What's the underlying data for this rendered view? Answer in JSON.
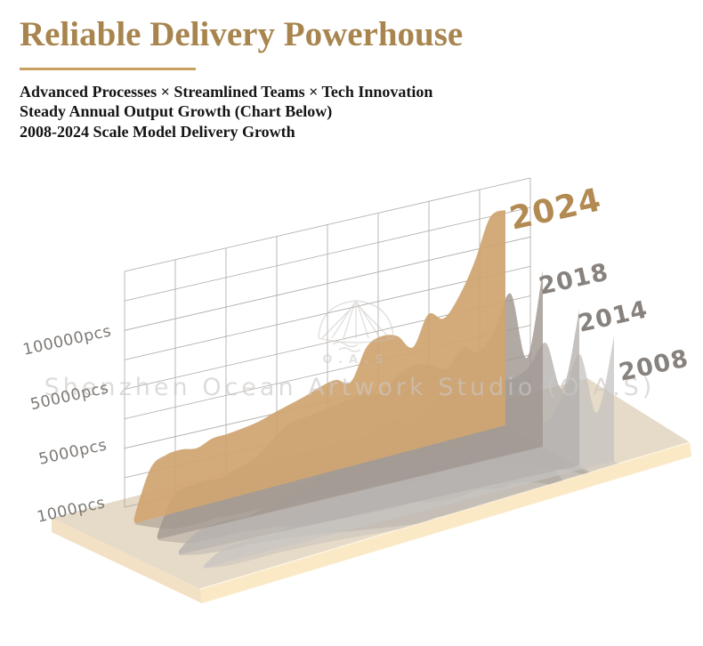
{
  "header": {
    "title": "Reliable Delivery Powerhouse",
    "subtitle_lines": [
      "Advanced Processes × Streamlined Teams × Tech Innovation",
      "Steady Annual Output Growth (Chart Below)",
      "2008-2024 Scale Model Delivery Growth"
    ],
    "accent_color": "#a8854e",
    "underline_color": "#c7a05f"
  },
  "watermark": {
    "studio_text": "Shenzhen Ocean Artwork Studio (O.A.S)",
    "logo_text": "O.A.S"
  },
  "chart_data": {
    "type": "area",
    "title": "2008-2024 Scale Model Delivery Growth",
    "unit": "pcs",
    "xlabel": "",
    "ylabel": "pcs",
    "scale": "non-linear decorative axis",
    "ytick_labels": [
      "100000pcs",
      "50000pcs",
      "5000pcs",
      "1000pcs"
    ],
    "ytick_values": [
      100000,
      50000,
      5000,
      1000
    ],
    "grid": {
      "rows": 8,
      "cols": 8,
      "style": "sheared 3D wall"
    },
    "legend_position": "labels at right end of each ribbon",
    "series": [
      {
        "name": "2008",
        "fill": "#c4c1bf",
        "label_color": "#87827e",
        "values": [
          150,
          700,
          800,
          850,
          800,
          950,
          1050,
          1250,
          1450,
          1750,
          2000,
          2250,
          2500,
          2700,
          2350,
          2500,
          2800,
          2600,
          2300,
          3100,
          2700,
          3600,
          8000,
          2500,
          12000
        ]
      },
      {
        "name": "2014",
        "fill": "#b3b0ad",
        "label_color": "#87827e",
        "values": [
          250,
          1000,
          1200,
          1250,
          1200,
          1450,
          1600,
          1900,
          2250,
          2800,
          3200,
          3600,
          4000,
          4300,
          3800,
          4500,
          5000,
          4700,
          4200,
          5600,
          5000,
          9000,
          18000,
          4000,
          30000
        ]
      },
      {
        "name": "2018",
        "fill": "#a09690",
        "label_color": "#87827e",
        "values": [
          500,
          2500,
          2800,
          2900,
          2800,
          3200,
          3500,
          4200,
          5000,
          6500,
          8000,
          9500,
          11000,
          12000,
          10000,
          18000,
          21000,
          19000,
          15000,
          24000,
          20000,
          30000,
          48000,
          10000,
          60000
        ]
      },
      {
        "name": "2024",
        "fill": "#d0a571",
        "label_color": "#b28a52",
        "values": [
          800,
          4000,
          4700,
          4800,
          4600,
          5200,
          5600,
          6800,
          8500,
          12000,
          15000,
          18000,
          22000,
          24000,
          20000,
          42000,
          47000,
          44000,
          33000,
          56000,
          48000,
          67000,
          100000,
          135000,
          138000
        ]
      }
    ]
  },
  "colors": {
    "grid_line": "#a39e9a",
    "axis_label": "#7d7976",
    "platform_top": "#e6dbc8",
    "platform_front": "#fbe9c6",
    "platform_left": "#f2e1c4",
    "watermark": "#cbc8c5"
  }
}
